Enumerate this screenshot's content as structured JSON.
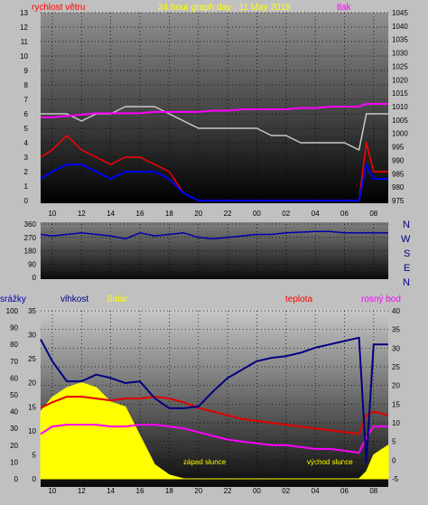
{
  "title": "24 hour graph day : 11 May 2019",
  "panels": {
    "wind": {
      "left_label": "rychlost větru",
      "right_label": "tlak"
    },
    "direction": {
      "compass": [
        "N",
        "W",
        "S",
        "E",
        "N"
      ]
    },
    "climate": {
      "left_labels": [
        "srážky",
        "vlhkost",
        "Solar"
      ],
      "right_labels": [
        "teplota",
        "rosný bod"
      ],
      "annotations": [
        "západ slunce",
        "východ slunce"
      ]
    }
  },
  "colors": {
    "wind_speed": "#ff0000",
    "wind_avg": "#0000ff",
    "pressure": "#ff00ff",
    "gust_line": "#c8c8c8",
    "direction": "#0000aa",
    "humidity": "#000080",
    "temperature": "#e00000",
    "dewpoint": "#ff00ff",
    "solar": "#ffff00",
    "title": "#ffff00",
    "label_red": "#ff0000",
    "label_pink": "#ff00ff"
  },
  "chart_data": [
    {
      "type": "line",
      "title": "24 hour graph day : 11 May 2019",
      "x_ticks": [
        "10",
        "12",
        "14",
        "16",
        "18",
        "20",
        "22",
        "00",
        "02",
        "04",
        "06",
        "08"
      ],
      "y_left_ticks": [
        "0",
        "1",
        "2",
        "3",
        "4",
        "5",
        "6",
        "7",
        "8",
        "9",
        "10",
        "11",
        "12",
        "13"
      ],
      "ylim_left": [
        0,
        13
      ],
      "y_right_ticks": [
        "975",
        "980",
        "985",
        "990",
        "995",
        "1000",
        "1005",
        "1010",
        "1015",
        "1020",
        "1025",
        "1030",
        "1035",
        "1040",
        "1045"
      ],
      "ylim_right": [
        975,
        1045
      ],
      "x": [
        9.2,
        10,
        11,
        12,
        13,
        14,
        15,
        16,
        17,
        18,
        19,
        20,
        21,
        22,
        23,
        24,
        25,
        26,
        27,
        28,
        29,
        30,
        31,
        31.5,
        32,
        33
      ],
      "series": [
        {
          "name": "tlak",
          "values": [
            1006,
            1006,
            1006.5,
            1007,
            1007.5,
            1007.5,
            1007.5,
            1007.5,
            1008,
            1008,
            1008,
            1008,
            1008.5,
            1008.5,
            1009,
            1009,
            1009,
            1009,
            1009.5,
            1009.5,
            1010,
            1010,
            1010,
            1011,
            1011,
            1011
          ]
        },
        {
          "values": [
            6,
            6,
            6,
            5.5,
            6,
            6,
            6.5,
            6.5,
            6.5,
            6,
            5.5,
            5,
            5,
            5,
            5,
            5,
            4.5,
            4.5,
            4,
            4,
            4,
            4,
            3.5,
            6,
            6,
            6
          ]
        },
        {
          "values": [
            3,
            3.5,
            4.5,
            3.5,
            3,
            2.5,
            3,
            3,
            2.5,
            2,
            0.5,
            0,
            0,
            0,
            0,
            0,
            0,
            0,
            0,
            0,
            0,
            0,
            0,
            4,
            2,
            2
          ]
        },
        {
          "values": [
            1.5,
            2,
            2.5,
            2.5,
            2,
            1.5,
            2,
            2,
            2,
            1.5,
            0.5,
            0,
            0,
            0,
            0,
            0,
            0,
            0,
            0,
            0,
            0,
            0,
            0,
            2.5,
            1.5,
            1.5
          ]
        }
      ],
      "legend": "top"
    },
    {
      "type": "line",
      "x_ticks": [
        "10",
        "12",
        "14",
        "16",
        "18",
        "20",
        "22",
        "00",
        "02",
        "04",
        "06",
        "08"
      ],
      "y_ticks": [
        "0",
        "90",
        "180",
        "270",
        "360"
      ],
      "ylim": [
        0,
        360
      ],
      "x": [
        9.2,
        10,
        11,
        12,
        13,
        14,
        15,
        16,
        17,
        18,
        19,
        20,
        21,
        22,
        23,
        24,
        25,
        26,
        27,
        28,
        29,
        30,
        31,
        32,
        33
      ],
      "series": [
        {
          "values": [
            290,
            280,
            290,
            300,
            290,
            280,
            260,
            300,
            280,
            290,
            300,
            270,
            260,
            270,
            280,
            290,
            290,
            300,
            305,
            310,
            310,
            300,
            300,
            300,
            300
          ]
        }
      ]
    },
    {
      "type": "area",
      "x_ticks": [
        "10",
        "12",
        "14",
        "16",
        "18",
        "20",
        "22",
        "00",
        "02",
        "04",
        "06",
        "08"
      ],
      "y_left_ticks": [
        "0",
        "10",
        "20",
        "30",
        "40",
        "50",
        "60",
        "70",
        "80",
        "90",
        "100"
      ],
      "ylim_left": [
        0,
        100
      ],
      "y_right_ticks": [
        "-5",
        "0",
        "5",
        "10",
        "15",
        "20",
        "25",
        "30",
        "35",
        "40"
      ],
      "ylim_right": [
        -5,
        40
      ],
      "x": [
        9.2,
        10,
        11,
        12,
        13,
        14,
        15,
        16,
        17,
        18,
        19,
        20,
        21,
        22,
        23,
        24,
        25,
        26,
        27,
        28,
        29,
        30,
        31,
        31.5,
        32,
        33
      ],
      "series": [
        {
          "name": "vlhkost",
          "values": [
            83,
            70,
            58,
            58,
            62,
            60,
            57,
            58,
            48,
            42,
            42,
            43,
            52,
            60,
            65,
            70,
            72,
            73,
            75,
            78,
            80,
            82,
            84,
            10,
            80,
            80
          ]
        },
        {
          "name": "teplota",
          "values": [
            14,
            15.5,
            17,
            17,
            16.5,
            16,
            16.5,
            16.5,
            17,
            16.5,
            15.5,
            14,
            13,
            12,
            11,
            10.5,
            10,
            9.5,
            9,
            8.5,
            8,
            7.5,
            7,
            12,
            13,
            12
          ]
        },
        {
          "name": "rosný bod",
          "values": [
            7,
            9,
            9.5,
            9.5,
            9.5,
            9,
            9,
            9.5,
            9.5,
            9,
            8.5,
            7.5,
            6.5,
            5.5,
            5,
            4.5,
            4,
            4,
            3.5,
            3,
            3,
            2.5,
            2,
            6,
            9,
            9
          ]
        },
        {
          "name": "Solar",
          "values": [
            14,
            17,
            19,
            20,
            19,
            16,
            15,
            9,
            3,
            0.8,
            0,
            0,
            0,
            0,
            0,
            0,
            0,
            0,
            0,
            0,
            0,
            0,
            0,
            1.5,
            5,
            7
          ]
        }
      ]
    }
  ]
}
